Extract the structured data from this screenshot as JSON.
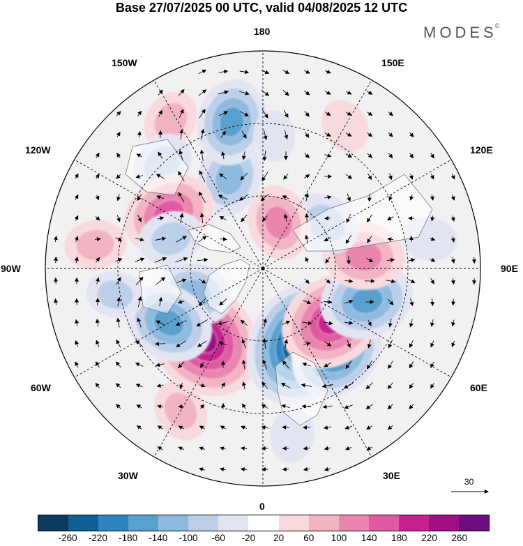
{
  "title": "Base 27/07/2025 00 UTC, valid 04/08/2025 12 UTC",
  "brand": "MODES",
  "brand_mark": "©",
  "longitude_labels": {
    "top": "180",
    "bottom": "0",
    "left": "90W",
    "right": "90E",
    "upper_left_1": "150W",
    "upper_left_2": "120W",
    "lower_left_1": "60W",
    "lower_left_2": "30W",
    "upper_right_1": "150E",
    "upper_right_2": "120E",
    "lower_right_1": "60E",
    "lower_right_2": "30E"
  },
  "reference_vector": {
    "magnitude": "30"
  },
  "colorbar": {
    "colors": [
      "#0d3b5f",
      "#135e92",
      "#2f84bf",
      "#5aa0cf",
      "#8fbadf",
      "#bccfe8",
      "#e3e4f2",
      "#ffffff",
      "#f8d9dd",
      "#f2b3c2",
      "#ea85ad",
      "#e05aa3",
      "#c8218f",
      "#a00f84",
      "#6b0f7c"
    ],
    "ticks": [
      "-260",
      "-220",
      "-180",
      "-140",
      "-100",
      "-60",
      "-20",
      "20",
      "60",
      "100",
      "140",
      "180",
      "220",
      "260"
    ]
  },
  "anomalies": [
    {
      "lon": 320,
      "colat": 38,
      "value": 250
    },
    {
      "lon": 27,
      "colat": 35,
      "value": -260
    },
    {
      "lon": 42,
      "colat": 46,
      "value": -180
    },
    {
      "lon": 53,
      "colat": 36,
      "value": 200
    },
    {
      "lon": 73,
      "colat": 45,
      "value": -160
    },
    {
      "lon": 97,
      "colat": 42,
      "value": 130
    },
    {
      "lon": 126,
      "colat": 32,
      "value": -90
    },
    {
      "lon": 161,
      "colat": 20,
      "value": 110
    },
    {
      "lon": 200,
      "colat": 40,
      "value": -120
    },
    {
      "lon": 150,
      "colat": 68,
      "value": 50
    },
    {
      "lon": 212,
      "colat": 72,
      "value": 70
    },
    {
      "lon": 192,
      "colat": 62,
      "value": -140
    },
    {
      "lon": 224,
      "colat": 60,
      "value": -80
    },
    {
      "lon": 240,
      "colat": 45,
      "value": 160
    },
    {
      "lon": 252,
      "colat": 40,
      "value": -80
    },
    {
      "lon": 262,
      "colat": 70,
      "value": 70
    },
    {
      "lon": 290,
      "colat": 30,
      "value": -110
    },
    {
      "lon": 300,
      "colat": 45,
      "value": -150
    },
    {
      "lon": 280,
      "colat": 62,
      "value": -60
    },
    {
      "lon": 330,
      "colat": 68,
      "value": 70
    },
    {
      "lon": 10,
      "colat": 70,
      "value": -50
    },
    {
      "lon": 100,
      "colat": 70,
      "value": -50
    },
    {
      "lon": 175,
      "colat": 55,
      "value": -40
    }
  ],
  "vortices": [
    {
      "lon": 320,
      "colat": 38,
      "sense": -1
    },
    {
      "lon": 27,
      "colat": 35,
      "sense": 1
    },
    {
      "lon": 42,
      "colat": 46,
      "sense": 1
    },
    {
      "lon": 53,
      "colat": 36,
      "sense": -1
    },
    {
      "lon": 73,
      "colat": 45,
      "sense": 1
    },
    {
      "lon": 97,
      "colat": 42,
      "sense": -1
    },
    {
      "lon": 126,
      "colat": 32,
      "sense": 1
    },
    {
      "lon": 161,
      "colat": 20,
      "sense": -1
    },
    {
      "lon": 200,
      "colat": 40,
      "sense": 1
    },
    {
      "lon": 192,
      "colat": 62,
      "sense": 1
    },
    {
      "lon": 240,
      "colat": 45,
      "sense": -1
    },
    {
      "lon": 300,
      "colat": 45,
      "sense": 1
    },
    {
      "lon": 290,
      "colat": 30,
      "sense": 1
    }
  ]
}
